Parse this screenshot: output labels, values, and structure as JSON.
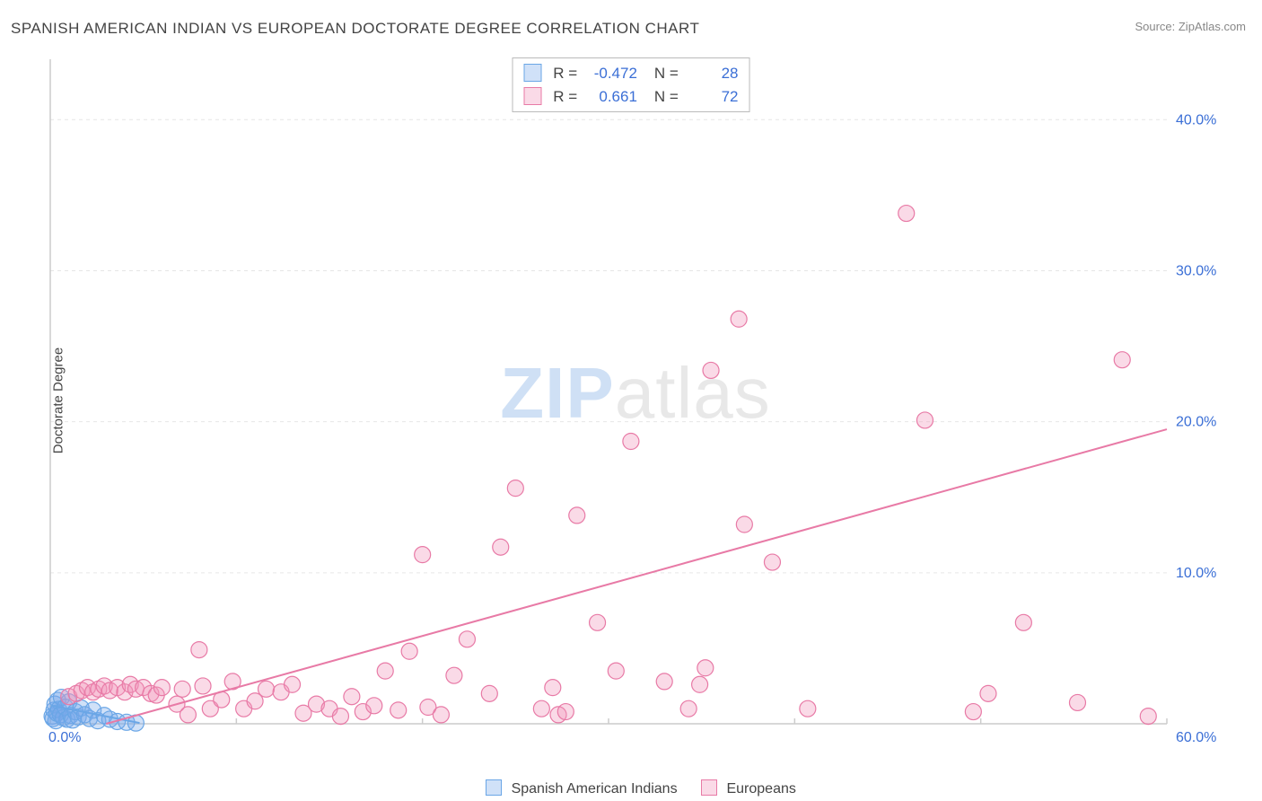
{
  "title": "SPANISH AMERICAN INDIAN VS EUROPEAN DOCTORATE DEGREE CORRELATION CHART",
  "source": "Source: ZipAtlas.com",
  "ylabel": "Doctorate Degree",
  "watermark_a": "ZIP",
  "watermark_b": "atlas",
  "chart": {
    "type": "scatter",
    "background_color": "#ffffff",
    "grid_color": "#e6e6e6",
    "axis_color": "#cccccc",
    "tick_label_color": "#3b6fd6",
    "xlim": [
      0,
      60
    ],
    "ylim": [
      0,
      44
    ],
    "xticks": [
      0,
      10,
      20,
      30,
      40,
      50,
      60
    ],
    "yticks": [
      10,
      20,
      30,
      40
    ],
    "x0_label": "0.0%",
    "x60_label": "60.0%",
    "ytick_labels": [
      "10.0%",
      "20.0%",
      "30.0%",
      "40.0%"
    ],
    "marker_radius": 9,
    "marker_stroke_width": 1.2,
    "trend_line_width": 2,
    "series": {
      "sai": {
        "label": "Spanish American Indians",
        "fill": "rgba(120,170,235,0.35)",
        "stroke": "#6aa6e6",
        "trend": {
          "x1": 0.1,
          "y1": 1.2,
          "x2": 4.8,
          "y2": 0.05
        },
        "points": [
          [
            0.1,
            0.5
          ],
          [
            0.15,
            0.35
          ],
          [
            0.2,
            0.9
          ],
          [
            0.25,
            1.3
          ],
          [
            0.3,
            0.2
          ],
          [
            0.35,
            0.7
          ],
          [
            0.4,
            1.55
          ],
          [
            0.45,
            0.95
          ],
          [
            0.55,
            0.6
          ],
          [
            0.6,
            1.75
          ],
          [
            0.7,
            0.4
          ],
          [
            0.8,
            1.1
          ],
          [
            0.9,
            0.3
          ],
          [
            1.0,
            1.45
          ],
          [
            1.1,
            0.55
          ],
          [
            1.2,
            0.25
          ],
          [
            1.35,
            0.8
          ],
          [
            1.5,
            0.45
          ],
          [
            1.65,
            1.05
          ],
          [
            1.85,
            0.6
          ],
          [
            2.1,
            0.35
          ],
          [
            2.3,
            0.9
          ],
          [
            2.55,
            0.2
          ],
          [
            2.9,
            0.55
          ],
          [
            3.2,
            0.3
          ],
          [
            3.6,
            0.15
          ],
          [
            4.1,
            0.1
          ],
          [
            4.6,
            0.05
          ]
        ]
      },
      "eur": {
        "label": "Europeans",
        "fill": "rgba(240,150,185,0.35)",
        "stroke": "#e87aa6",
        "trend": {
          "x1": 3.0,
          "y1": 0.0,
          "x2": 60.0,
          "y2": 19.5
        },
        "points": [
          [
            1.0,
            1.8
          ],
          [
            1.4,
            2.0
          ],
          [
            1.7,
            2.2
          ],
          [
            2.0,
            2.4
          ],
          [
            2.3,
            2.1
          ],
          [
            2.6,
            2.3
          ],
          [
            2.9,
            2.5
          ],
          [
            3.2,
            2.2
          ],
          [
            3.6,
            2.4
          ],
          [
            4.0,
            2.1
          ],
          [
            4.3,
            2.6
          ],
          [
            4.6,
            2.3
          ],
          [
            5.0,
            2.4
          ],
          [
            5.4,
            2.0
          ],
          [
            5.7,
            1.9
          ],
          [
            6.0,
            2.4
          ],
          [
            6.8,
            1.3
          ],
          [
            7.1,
            2.3
          ],
          [
            7.4,
            0.6
          ],
          [
            8.0,
            4.9
          ],
          [
            8.2,
            2.5
          ],
          [
            8.6,
            1.0
          ],
          [
            9.2,
            1.6
          ],
          [
            9.8,
            2.8
          ],
          [
            10.4,
            1.0
          ],
          [
            11.0,
            1.5
          ],
          [
            11.6,
            2.3
          ],
          [
            12.4,
            2.1
          ],
          [
            13.0,
            2.6
          ],
          [
            13.6,
            0.7
          ],
          [
            14.3,
            1.3
          ],
          [
            15.0,
            1.0
          ],
          [
            15.6,
            0.5
          ],
          [
            16.2,
            1.8
          ],
          [
            16.8,
            0.8
          ],
          [
            17.4,
            1.2
          ],
          [
            18.0,
            3.5
          ],
          [
            18.7,
            0.9
          ],
          [
            19.3,
            4.8
          ],
          [
            20.0,
            11.2
          ],
          [
            20.3,
            1.1
          ],
          [
            21.0,
            0.6
          ],
          [
            21.7,
            3.2
          ],
          [
            22.4,
            5.6
          ],
          [
            23.6,
            2.0
          ],
          [
            24.2,
            11.7
          ],
          [
            25.0,
            15.6
          ],
          [
            26.4,
            1.0
          ],
          [
            27.0,
            2.4
          ],
          [
            27.3,
            0.6
          ],
          [
            27.7,
            0.8
          ],
          [
            28.3,
            13.8
          ],
          [
            29.4,
            6.7
          ],
          [
            30.4,
            3.5
          ],
          [
            31.2,
            18.7
          ],
          [
            33.0,
            2.8
          ],
          [
            34.3,
            1.0
          ],
          [
            34.9,
            2.6
          ],
          [
            35.2,
            3.7
          ],
          [
            35.5,
            23.4
          ],
          [
            37.0,
            26.8
          ],
          [
            37.3,
            13.2
          ],
          [
            38.8,
            10.7
          ],
          [
            40.7,
            1.0
          ],
          [
            46.0,
            33.8
          ],
          [
            47.0,
            20.1
          ],
          [
            49.6,
            0.8
          ],
          [
            50.4,
            2.0
          ],
          [
            52.3,
            6.7
          ],
          [
            55.2,
            1.4
          ],
          [
            57.6,
            24.1
          ],
          [
            59.0,
            0.5
          ]
        ]
      }
    },
    "stats": [
      {
        "series": "sai",
        "R_label": "R =",
        "R": "-0.472",
        "N_label": "N =",
        "N": "28"
      },
      {
        "series": "eur",
        "R_label": "R =",
        "R": "0.661",
        "N_label": "N =",
        "N": "72"
      }
    ]
  }
}
